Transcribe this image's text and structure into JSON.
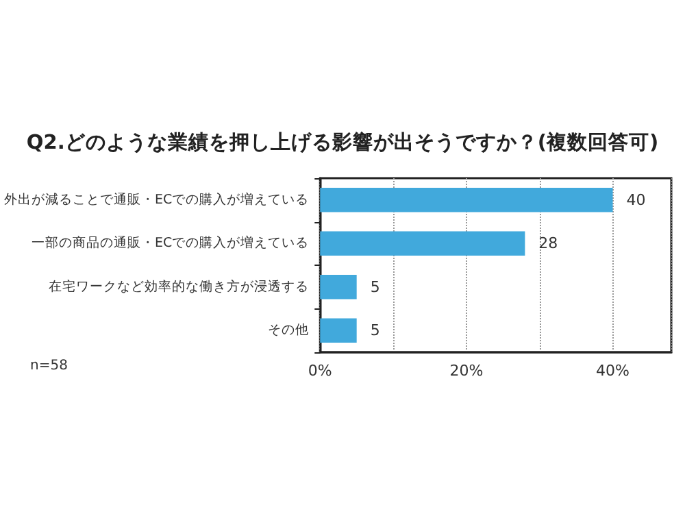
{
  "chart_data": {
    "type": "bar",
    "orientation": "horizontal",
    "title": "Q2.どのような業績を押し上げる影響が出そうですか？(複数回答可)",
    "categories": [
      "外出が減ることで通販・ECでの購入が増えている",
      "一部の商品の通販・ECでの購入が増えている",
      "在宅ワークなど効率的な働き方が浸透する",
      "その他"
    ],
    "values": [
      40,
      28,
      5,
      5
    ],
    "color": "#41a9dc",
    "data_labels": true,
    "xlim": [
      0,
      48
    ],
    "xticks": [
      {
        "value": 0,
        "label": "0%"
      },
      {
        "value": 10,
        "label": null
      },
      {
        "value": 20,
        "label": "20%"
      },
      {
        "value": 30,
        "label": null
      },
      {
        "value": 40,
        "label": "40%"
      }
    ],
    "grid": "x",
    "annotations": [
      "n=58"
    ]
  }
}
